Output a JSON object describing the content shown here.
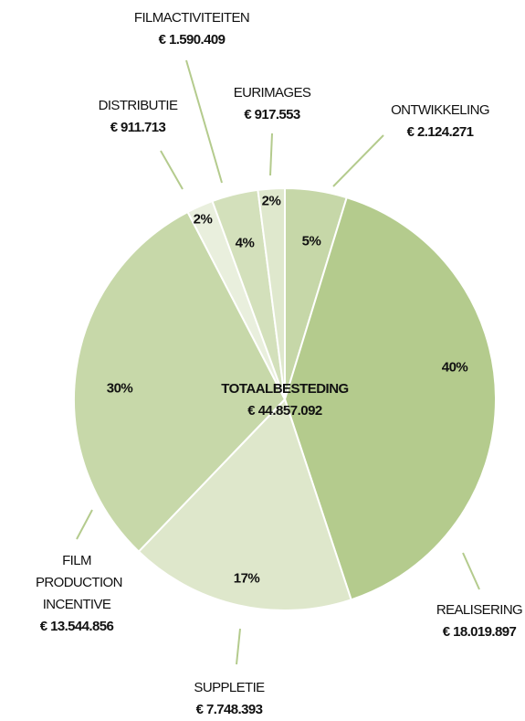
{
  "chart_data": {
    "type": "pie",
    "center_label": "TOTAALBESTEDING",
    "total_label": "€ 44.857.092",
    "categories": [
      "ONTWIKKELING",
      "REALISERING",
      "SUPPLETIE",
      "FILM PRODUCTION INCENTIVE",
      "DISTRIBUTIE",
      "FILMACTIVITEITEN",
      "EURIMAGES"
    ],
    "values": [
      2124271,
      18019897,
      7748393,
      13544856,
      911713,
      1590409,
      917553
    ],
    "value_labels": [
      "€ 2.124.271",
      "€ 18.019.897",
      "€ 7.748.393",
      "€ 13.544.856",
      "€ 911.713",
      "€ 1.590.409",
      "€  917.553"
    ],
    "percent_labels": [
      "5%",
      "40%",
      "17%",
      "30%",
      "2%",
      "4%",
      "2%"
    ],
    "colors": [
      "#c6d7a8",
      "#b4cb8d",
      "#dee7cb",
      "#c7d8a9",
      "#e9efdd",
      "#d3e0bb",
      "#dfe8cd"
    ]
  }
}
